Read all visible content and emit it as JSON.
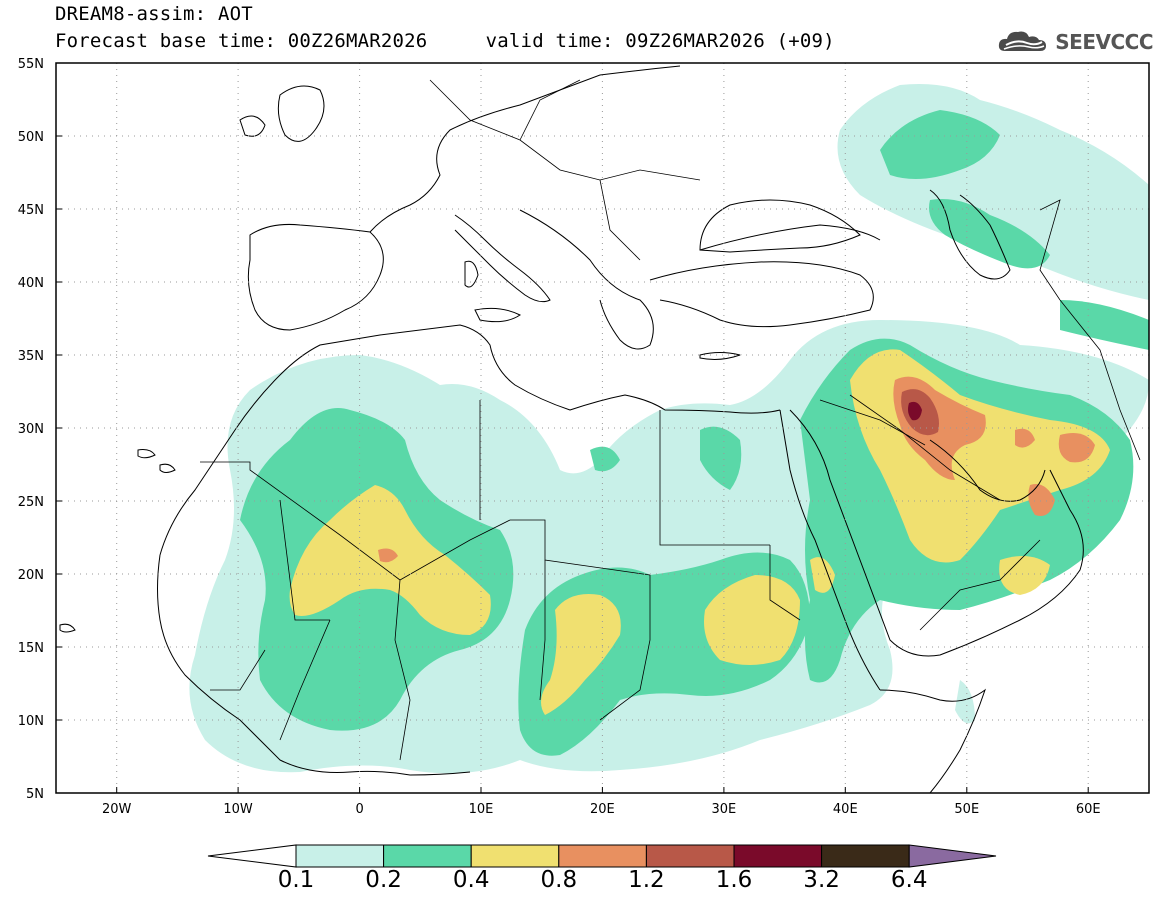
{
  "header": {
    "title": "DREAM8-assim: AOT",
    "forecast_line": "Forecast base time: 00Z26MAR2026     valid time: 09Z26MAR2026 (+09)"
  },
  "logo": {
    "text": "SEEVCCC",
    "icon": "cloud-icon"
  },
  "map": {
    "projection": "lat-lon",
    "lon_range": [
      -25,
      65
    ],
    "lat_range": [
      5,
      55
    ],
    "lat_labels": [
      "5N",
      "10N",
      "15N",
      "20N",
      "25N",
      "30N",
      "35N",
      "40N",
      "45N",
      "50N",
      "55N"
    ],
    "lon_labels": [
      "20W",
      "10W",
      "0",
      "10E",
      "20E",
      "30E",
      "40E",
      "50E",
      "60E"
    ],
    "grid": "dotted",
    "field": "Aerosol Optical Thickness"
  },
  "colorbar": {
    "labels": [
      "0.1",
      "0.2",
      "0.4",
      "0.8",
      "1.2",
      "1.6",
      "3.2",
      "6.4"
    ],
    "colors": [
      "#ffffff",
      "#c8f0e8",
      "#5ad8a8",
      "#f0e070",
      "#e89060",
      "#b85848",
      "#7a0a2a",
      "#3a2a18",
      "#8a6aa0"
    ]
  }
}
